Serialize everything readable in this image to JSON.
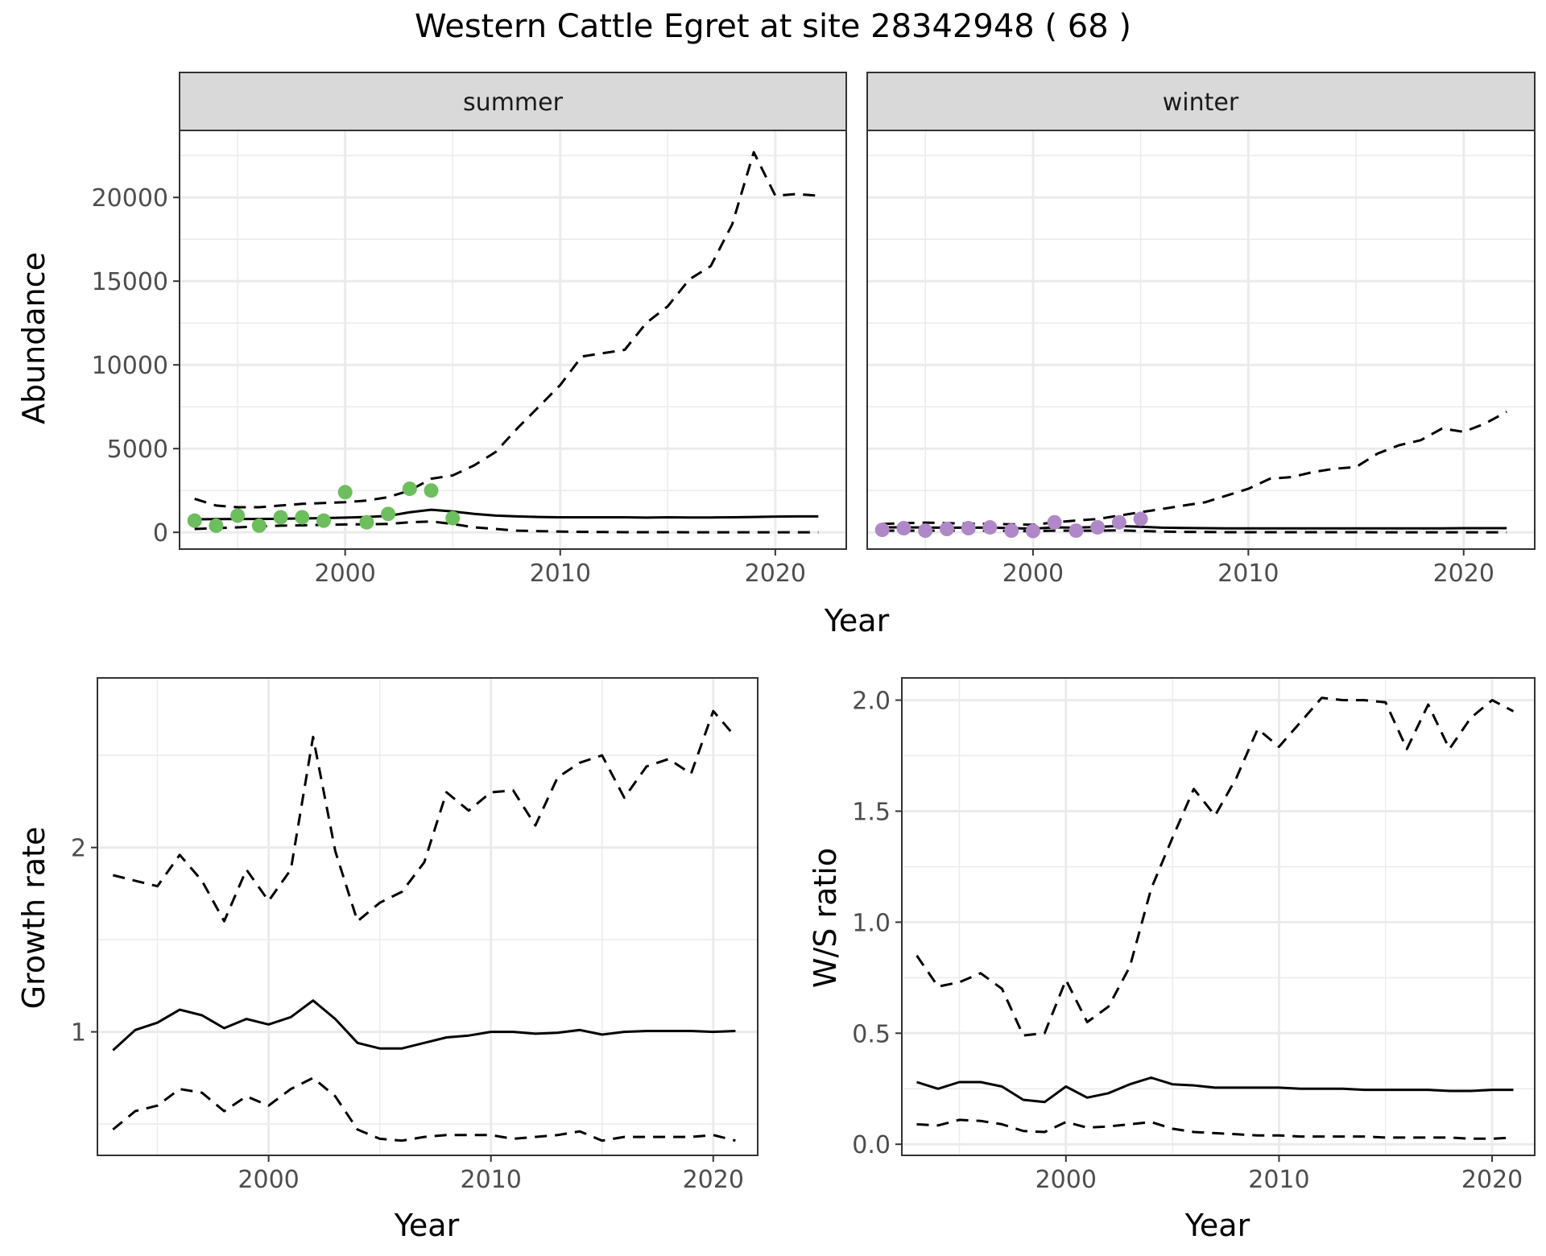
{
  "title": "Western Cattle Egret at site 28342948 ( 68 )",
  "colors": {
    "summer_points": "#6DBE5C",
    "winter_points": "#B088C8",
    "line": "#000000",
    "strip_fill": "#D9D9D9",
    "grid": "#EBEBEB"
  },
  "chart_data": [
    {
      "type": "line",
      "panel": "summer",
      "strip_label": "summer",
      "ylabel": "Abundance",
      "xlabel": "Year",
      "xlim": [
        1992.3,
        2023.3
      ],
      "ylim": [
        -1000,
        24000
      ],
      "x_ticks": [
        2000,
        2010,
        2020
      ],
      "y_ticks": [
        0,
        5000,
        10000,
        15000,
        20000
      ],
      "grid": true,
      "series": [
        {
          "style": "solid",
          "x": [
            1993,
            1994,
            1995,
            1996,
            1997,
            1998,
            1999,
            2000,
            2001,
            2002,
            2003,
            2004,
            2005,
            2006,
            2007,
            2008,
            2009,
            2010,
            2011,
            2012,
            2013,
            2014,
            2015,
            2016,
            2017,
            2018,
            2019,
            2020,
            2021,
            2022
          ],
          "values": [
            780,
            790,
            800,
            800,
            810,
            830,
            850,
            880,
            920,
            980,
            1200,
            1350,
            1250,
            1100,
            1000,
            950,
            920,
            900,
            900,
            900,
            900,
            880,
            900,
            890,
            890,
            900,
            920,
            940,
            950,
            950
          ]
        },
        {
          "style": "dashed",
          "x": [
            1993,
            1994,
            1995,
            1996,
            1997,
            1998,
            1999,
            2000,
            2001,
            2002,
            2003,
            2004,
            2005,
            2006,
            2007,
            2008,
            2009,
            2010,
            2011,
            2012,
            2013,
            2014,
            2015,
            2016,
            2017,
            2018,
            2019,
            2020,
            2021,
            2022
          ],
          "values": [
            2000,
            1600,
            1500,
            1500,
            1600,
            1700,
            1750,
            1800,
            1900,
            2100,
            2500,
            3200,
            3400,
            4000,
            4800,
            6200,
            7500,
            8800,
            10500,
            10700,
            10900,
            12500,
            13500,
            15100,
            15900,
            18400,
            22700,
            20100,
            20200,
            20100
          ]
        },
        {
          "style": "dashed",
          "x": [
            1993,
            1994,
            1995,
            1996,
            1997,
            1998,
            1999,
            2000,
            2001,
            2002,
            2003,
            2004,
            2005,
            2006,
            2007,
            2008,
            2009,
            2010,
            2011,
            2012,
            2013,
            2014,
            2015,
            2016,
            2017,
            2018,
            2019,
            2020,
            2021,
            2022
          ],
          "values": [
            200,
            250,
            300,
            350,
            400,
            420,
            450,
            470,
            480,
            500,
            600,
            650,
            500,
            300,
            200,
            100,
            70,
            50,
            30,
            20,
            10,
            10,
            10,
            5,
            5,
            5,
            5,
            5,
            5,
            5
          ]
        }
      ],
      "points": {
        "x": [
          1993,
          1994,
          1995,
          1996,
          1997,
          1998,
          1999,
          2000,
          2001,
          2002,
          2003,
          2004,
          2005
        ],
        "values": [
          700,
          400,
          1000,
          400,
          900,
          900,
          700,
          2400,
          600,
          1100,
          2600,
          2500,
          850
        ]
      }
    },
    {
      "type": "line",
      "panel": "winter",
      "strip_label": "winter",
      "xlabel": "Year",
      "xlim": [
        1992.3,
        2023.3
      ],
      "ylim": [
        -1000,
        24000
      ],
      "x_ticks": [
        2000,
        2010,
        2020
      ],
      "grid": true,
      "series": [
        {
          "style": "solid",
          "x": [
            1993,
            1994,
            1995,
            1996,
            1997,
            1998,
            1999,
            2000,
            2001,
            2002,
            2003,
            2004,
            2005,
            2006,
            2007,
            2008,
            2009,
            2010,
            2011,
            2012,
            2013,
            2014,
            2015,
            2016,
            2017,
            2018,
            2019,
            2020,
            2021,
            2022
          ],
          "values": [
            300,
            300,
            290,
            280,
            280,
            290,
            250,
            220,
            300,
            280,
            320,
            380,
            330,
            280,
            260,
            250,
            240,
            240,
            240,
            240,
            240,
            240,
            240,
            240,
            240,
            240,
            240,
            250,
            250,
            250
          ]
        },
        {
          "style": "dashed",
          "x": [
            1993,
            1994,
            1995,
            1996,
            1997,
            1998,
            1999,
            2000,
            2001,
            2002,
            2003,
            2004,
            2005,
            2006,
            2007,
            2008,
            2009,
            2010,
            2011,
            2012,
            2013,
            2014,
            2015,
            2016,
            2017,
            2018,
            2019,
            2020,
            2021,
            2022
          ],
          "values": [
            500,
            550,
            580,
            550,
            520,
            500,
            480,
            450,
            600,
            700,
            800,
            1000,
            1200,
            1400,
            1600,
            1800,
            2200,
            2600,
            3200,
            3300,
            3600,
            3800,
            3900,
            4700,
            5200,
            5500,
            6200,
            6000,
            6500,
            7200
          ]
        },
        {
          "style": "dashed",
          "x": [
            1993,
            1994,
            1995,
            1996,
            1997,
            1998,
            1999,
            2000,
            2001,
            2002,
            2003,
            2004,
            2005,
            2006,
            2007,
            2008,
            2009,
            2010,
            2011,
            2012,
            2013,
            2014,
            2015,
            2016,
            2017,
            2018,
            2019,
            2020,
            2021,
            2022
          ],
          "values": [
            100,
            100,
            100,
            100,
            100,
            100,
            80,
            70,
            100,
            100,
            100,
            120,
            80,
            50,
            30,
            20,
            10,
            10,
            10,
            10,
            10,
            10,
            10,
            5,
            5,
            5,
            5,
            5,
            5,
            5
          ]
        }
      ],
      "points": {
        "x": [
          1993,
          1994,
          1995,
          1996,
          1997,
          1998,
          1999,
          2000,
          2001,
          2002,
          2003,
          2004,
          2005
        ],
        "values": [
          150,
          250,
          100,
          200,
          250,
          300,
          100,
          80,
          600,
          100,
          300,
          600,
          800
        ]
      }
    },
    {
      "type": "line",
      "panel": "growth",
      "ylabel": "Growth rate",
      "xlabel": "Year",
      "xlim": [
        1992.3,
        2022.0
      ],
      "ylim": [
        0.33,
        2.92
      ],
      "x_ticks": [
        2000,
        2010,
        2020
      ],
      "y_ticks": [
        1,
        2
      ],
      "grid": true,
      "series": [
        {
          "style": "solid",
          "x": [
            1993,
            1994,
            1995,
            1996,
            1997,
            1998,
            1999,
            2000,
            2001,
            2002,
            2003,
            2004,
            2005,
            2006,
            2007,
            2008,
            2009,
            2010,
            2011,
            2012,
            2013,
            2014,
            2015,
            2016,
            2017,
            2018,
            2019,
            2020,
            2021
          ],
          "values": [
            0.9,
            1.01,
            1.05,
            1.12,
            1.09,
            1.02,
            1.07,
            1.04,
            1.08,
            1.17,
            1.07,
            0.94,
            0.91,
            0.91,
            0.94,
            0.97,
            0.98,
            1.0,
            1.0,
            0.99,
            0.995,
            1.01,
            0.985,
            1.0,
            1.005,
            1.005,
            1.005,
            1.0,
            1.005
          ]
        },
        {
          "style": "dashed",
          "x": [
            1993,
            1994,
            1995,
            1996,
            1997,
            1998,
            1999,
            2000,
            2001,
            2002,
            2003,
            2004,
            2005,
            2006,
            2007,
            2008,
            2009,
            2010,
            2011,
            2012,
            2013,
            2014,
            2015,
            2016,
            2017,
            2018,
            2019,
            2020,
            2021
          ],
          "values": [
            1.85,
            1.82,
            1.79,
            1.96,
            1.82,
            1.6,
            1.88,
            1.71,
            1.88,
            2.6,
            1.98,
            1.6,
            1.7,
            1.76,
            1.92,
            2.3,
            2.2,
            2.3,
            2.31,
            2.12,
            2.38,
            2.46,
            2.5,
            2.27,
            2.44,
            2.48,
            2.4,
            2.74,
            2.6
          ]
        },
        {
          "style": "dashed",
          "x": [
            1993,
            1994,
            1995,
            1996,
            1997,
            1998,
            1999,
            2000,
            2001,
            2002,
            2003,
            2004,
            2005,
            2006,
            2007,
            2008,
            2009,
            2010,
            2011,
            2012,
            2013,
            2014,
            2015,
            2016,
            2017,
            2018,
            2019,
            2020,
            2021
          ],
          "values": [
            0.47,
            0.57,
            0.6,
            0.69,
            0.67,
            0.57,
            0.65,
            0.6,
            0.69,
            0.75,
            0.65,
            0.47,
            0.42,
            0.41,
            0.43,
            0.44,
            0.44,
            0.44,
            0.42,
            0.43,
            0.44,
            0.46,
            0.41,
            0.43,
            0.43,
            0.43,
            0.43,
            0.44,
            0.41
          ]
        }
      ]
    },
    {
      "type": "line",
      "panel": "ratio",
      "ylabel": "W/S ratio",
      "xlabel": "Year",
      "xlim": [
        1992.3,
        2022.0
      ],
      "ylim": [
        -0.05,
        2.1
      ],
      "x_ticks": [
        2000,
        2010,
        2020
      ],
      "y_ticks": [
        0.0,
        0.5,
        1.0,
        1.5,
        2.0
      ],
      "y_tick_labels": [
        "0.0",
        "0.5",
        "1.0",
        "1.5",
        "2.0"
      ],
      "grid": true,
      "series": [
        {
          "style": "solid",
          "x": [
            1993,
            1994,
            1995,
            1996,
            1997,
            1998,
            1999,
            2000,
            2001,
            2002,
            2003,
            2004,
            2005,
            2006,
            2007,
            2008,
            2009,
            2010,
            2011,
            2012,
            2013,
            2014,
            2015,
            2016,
            2017,
            2018,
            2019,
            2020,
            2021
          ],
          "values": [
            0.28,
            0.25,
            0.28,
            0.28,
            0.26,
            0.2,
            0.19,
            0.26,
            0.21,
            0.23,
            0.27,
            0.3,
            0.27,
            0.265,
            0.255,
            0.255,
            0.255,
            0.255,
            0.25,
            0.25,
            0.25,
            0.245,
            0.245,
            0.245,
            0.245,
            0.24,
            0.24,
            0.245,
            0.245
          ]
        },
        {
          "style": "dashed",
          "x": [
            1993,
            1994,
            1995,
            1996,
            1997,
            1998,
            1999,
            2000,
            2001,
            2002,
            2003,
            2004,
            2005,
            2006,
            2007,
            2008,
            2009,
            2010,
            2011,
            2012,
            2013,
            2014,
            2015,
            2016,
            2017,
            2018,
            2019,
            2020,
            2021
          ],
          "values": [
            0.85,
            0.71,
            0.73,
            0.77,
            0.7,
            0.49,
            0.5,
            0.74,
            0.55,
            0.62,
            0.8,
            1.15,
            1.38,
            1.6,
            1.48,
            1.65,
            1.87,
            1.79,
            1.9,
            2.01,
            2.0,
            2.0,
            1.99,
            1.78,
            1.98,
            1.78,
            1.92,
            2.0,
            1.95
          ]
        },
        {
          "style": "dashed",
          "x": [
            1993,
            1994,
            1995,
            1996,
            1997,
            1998,
            1999,
            2000,
            2001,
            2002,
            2003,
            2004,
            2005,
            2006,
            2007,
            2008,
            2009,
            2010,
            2011,
            2012,
            2013,
            2014,
            2015,
            2016,
            2017,
            2018,
            2019,
            2020,
            2021
          ],
          "values": [
            0.09,
            0.085,
            0.11,
            0.105,
            0.09,
            0.06,
            0.055,
            0.1,
            0.075,
            0.08,
            0.09,
            0.1,
            0.07,
            0.055,
            0.05,
            0.045,
            0.04,
            0.04,
            0.035,
            0.035,
            0.035,
            0.035,
            0.03,
            0.03,
            0.03,
            0.03,
            0.025,
            0.025,
            0.03
          ]
        }
      ]
    }
  ]
}
